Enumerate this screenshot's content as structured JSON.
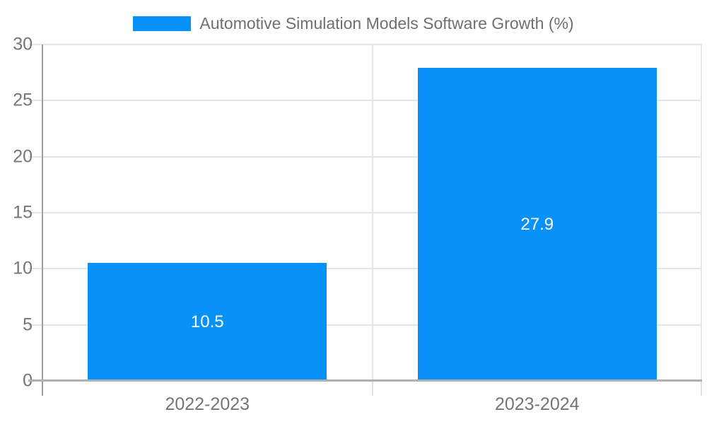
{
  "chart_data": {
    "type": "bar",
    "categories": [
      "2022-2023",
      "2023-2024"
    ],
    "values": [
      10.5,
      27.9
    ],
    "data_labels": [
      "10.5",
      "27.9"
    ],
    "series": [
      {
        "name": "Automotive Simulation Models Software Growth (%)",
        "values": [
          10.5,
          27.9
        ]
      }
    ],
    "title": "",
    "xlabel": "",
    "ylabel": "",
    "ylim": [
      0,
      30
    ],
    "ytick_step": 5,
    "ytick_labels": [
      "0",
      "5",
      "10",
      "15",
      "20",
      "25",
      "30"
    ],
    "grid": true,
    "legend_position": "top",
    "bar_color": "#0892f7",
    "data_label_color": "#ffffff"
  },
  "legend": {
    "label": "Automotive Simulation Models Software Growth (%)",
    "swatch_color": "#0892f7"
  },
  "colors": {
    "bar": "#0892f7",
    "grid": "#e6e6e6",
    "axis_line": "#9e9e9e",
    "baseline": "#b0b0b0",
    "axis_text": "#757575",
    "legend_text": "#6f6f6f",
    "data_label_text": "#ffffff",
    "background": "#ffffff"
  }
}
